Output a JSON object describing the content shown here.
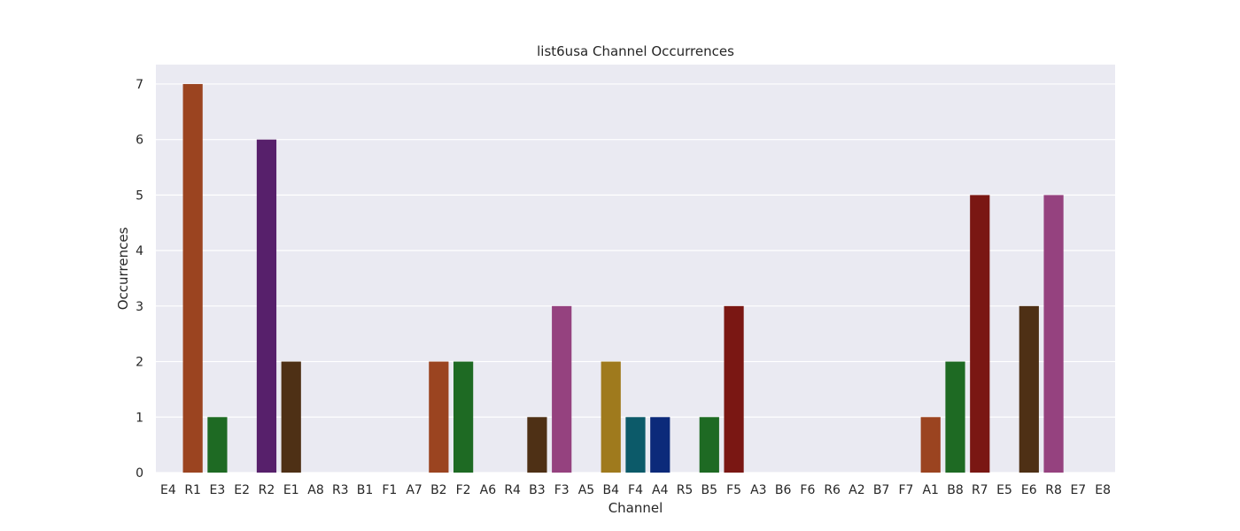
{
  "chart_data": {
    "type": "bar",
    "title": "list6usa Channel Occurrences",
    "xlabel": "Channel",
    "ylabel": "Occurrences",
    "ylim": [
      0,
      7.35
    ],
    "yticks": [
      0,
      1,
      2,
      3,
      4,
      5,
      6,
      7
    ],
    "grid": true,
    "categories": [
      "E4",
      "R1",
      "E3",
      "E2",
      "R2",
      "E1",
      "A8",
      "R3",
      "B1",
      "F1",
      "A7",
      "B2",
      "F2",
      "A6",
      "R4",
      "B3",
      "F3",
      "A5",
      "B4",
      "F4",
      "A4",
      "R5",
      "B5",
      "F5",
      "A3",
      "B6",
      "F6",
      "R6",
      "A2",
      "B7",
      "F7",
      "A1",
      "B8",
      "R7",
      "E5",
      "E6",
      "R8",
      "E7",
      "E8"
    ],
    "values": [
      0,
      7,
      1,
      0,
      6,
      2,
      0,
      0,
      0,
      0,
      0,
      2,
      2,
      0,
      0,
      1,
      3,
      0,
      2,
      1,
      1,
      0,
      1,
      3,
      0,
      0,
      0,
      0,
      0,
      0,
      0,
      1,
      2,
      5,
      0,
      3,
      5,
      0,
      0
    ],
    "colors": {
      "E": "#1e6a23",
      "R": "#9b4420",
      "A": "#0c2a7a",
      "B": "#9f7a1d",
      "F": "#0c5a69",
      "R1": "#9b4420",
      "E3": "#1e6a23",
      "R2": "#57206b",
      "E1": "#4e3015",
      "B2": "#9b4420",
      "F2": "#1e6a23",
      "B3": "#4e3015",
      "F3": "#95427f",
      "B4": "#9f7a1d",
      "F4": "#0c5a69",
      "A4": "#0c2a7a",
      "B5": "#1e6a23",
      "F5": "#7a1713",
      "A1": "#9b4420",
      "B8": "#1e6a23",
      "R7": "#7a1713",
      "E6": "#4e3015",
      "R8": "#95427f"
    },
    "background": "#eaeaf2",
    "gridColor": "#ffffff"
  }
}
